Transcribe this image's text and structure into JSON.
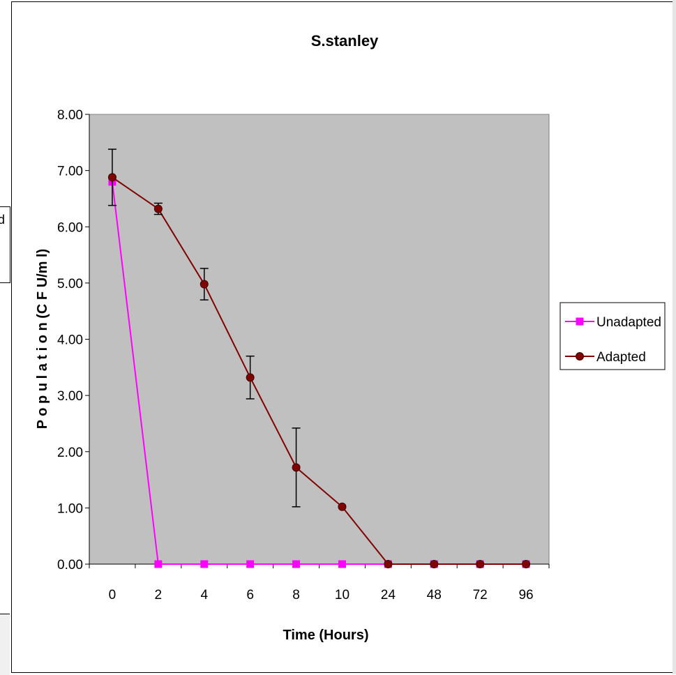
{
  "chart_data": {
    "type": "line",
    "title": "S.stanley",
    "xlabel": "Time (Hours)",
    "ylabel": "P o p u l a t i o n  (C F U/m l)",
    "categories": [
      "0",
      "2",
      "4",
      "6",
      "8",
      "10",
      "24",
      "48",
      "72",
      "96"
    ],
    "ylim": [
      0,
      8
    ],
    "y_ticks": [
      "0.00",
      "1.00",
      "2.00",
      "3.00",
      "4.00",
      "5.00",
      "6.00",
      "7.00",
      "8.00"
    ],
    "grid": false,
    "plot_background": "#c0c0c0",
    "legend_position": "right",
    "series": [
      {
        "name": "Unadapted",
        "color": "#ff00ff",
        "marker": "square",
        "values": [
          6.8,
          0,
          0,
          0,
          0,
          0,
          0,
          0,
          0,
          0
        ]
      },
      {
        "name": "Adapted",
        "color": "#800000",
        "marker": "circle",
        "values": [
          6.88,
          6.32,
          4.98,
          3.32,
          1.72,
          1.02,
          0,
          0,
          0,
          0
        ],
        "error": [
          0.5,
          0.1,
          0.28,
          0.38,
          0.7,
          0,
          0,
          0,
          0,
          0
        ]
      }
    ]
  },
  "background": {
    "left_partial_text": "d"
  }
}
